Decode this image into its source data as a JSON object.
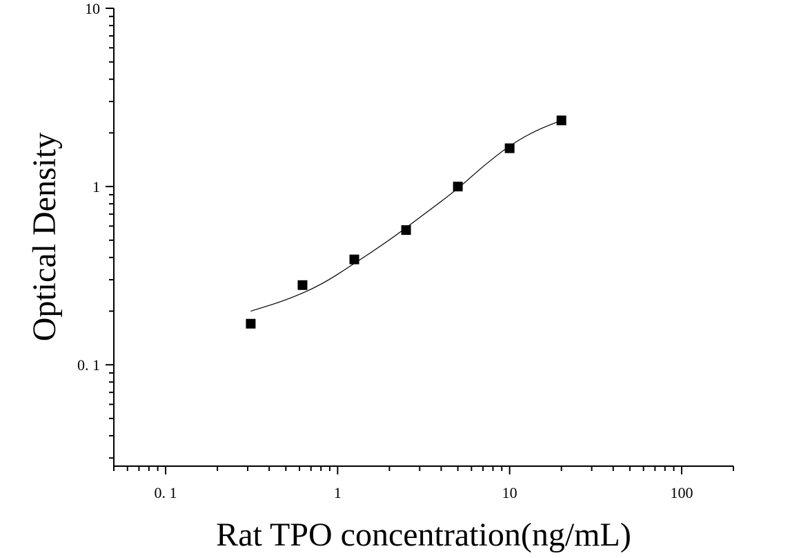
{
  "chart_data": {
    "type": "scatter",
    "title": "",
    "xlabel": "Rat TPO concentration(ng/mL)",
    "ylabel": "Optical Density",
    "x_scale": "log",
    "y_scale": "log",
    "xlim": [
      0.05,
      200
    ],
    "ylim": [
      0.027,
      10
    ],
    "x_ticks": [
      {
        "value": 0.1,
        "label": "0. 1"
      },
      {
        "value": 1,
        "label": "1"
      },
      {
        "value": 10,
        "label": "10"
      },
      {
        "value": 100,
        "label": "100"
      }
    ],
    "y_ticks": [
      {
        "value": 0.1,
        "label": "0. 1"
      },
      {
        "value": 1,
        "label": "1"
      },
      {
        "value": 10,
        "label": "10"
      }
    ],
    "grid": false,
    "legend": "none",
    "series": [
      {
        "marker": "square",
        "color": "#000000",
        "points": [
          {
            "x": 0.3125,
            "y": 0.17
          },
          {
            "x": 0.625,
            "y": 0.28
          },
          {
            "x": 1.25,
            "y": 0.39
          },
          {
            "x": 2.5,
            "y": 0.57
          },
          {
            "x": 5,
            "y": 1.0
          },
          {
            "x": 10,
            "y": 1.64
          },
          {
            "x": 20,
            "y": 2.35
          }
        ]
      }
    ],
    "fit_curve": {
      "color": "#000000",
      "points": [
        {
          "x": 0.3125,
          "y": 0.2
        },
        {
          "x": 0.5,
          "y": 0.23
        },
        {
          "x": 0.8,
          "y": 0.28
        },
        {
          "x": 1.25,
          "y": 0.37
        },
        {
          "x": 2,
          "y": 0.5
        },
        {
          "x": 3,
          "y": 0.67
        },
        {
          "x": 5,
          "y": 0.97
        },
        {
          "x": 7,
          "y": 1.3
        },
        {
          "x": 10,
          "y": 1.7
        },
        {
          "x": 14,
          "y": 2.05
        },
        {
          "x": 20,
          "y": 2.35
        }
      ]
    }
  }
}
